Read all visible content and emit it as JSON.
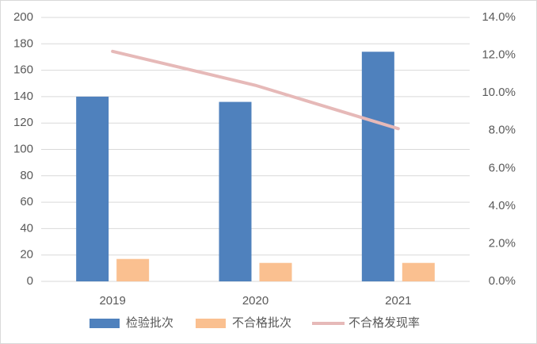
{
  "chart_data": {
    "type": "bar",
    "categories": [
      "2019",
      "2020",
      "2021"
    ],
    "series": [
      {
        "name": "检验批次",
        "type": "bar",
        "color": "#4f81bd",
        "values": [
          140,
          136,
          174
        ]
      },
      {
        "name": "不合格批次",
        "type": "bar",
        "color": "#fac090",
        "values": [
          17,
          14,
          14
        ]
      },
      {
        "name": "不合格发现率",
        "type": "line",
        "axis": "y2",
        "color": "#e6b9b8",
        "values": [
          12.2,
          10.4,
          8.1
        ]
      }
    ],
    "ylim": [
      0,
      200
    ],
    "yticks": [
      0,
      20,
      40,
      60,
      80,
      100,
      120,
      140,
      160,
      180,
      200
    ],
    "y2lim": [
      0,
      14
    ],
    "y2ticks": [
      {
        "value": 0,
        "label": "0.0%"
      },
      {
        "value": 2,
        "label": "2.0%"
      },
      {
        "value": 4,
        "label": "4.0%"
      },
      {
        "value": 6,
        "label": "6.0%"
      },
      {
        "value": 8,
        "label": "8.0%"
      },
      {
        "value": 10,
        "label": "10.0%"
      },
      {
        "value": 12,
        "label": "12.0%"
      },
      {
        "value": 14,
        "label": "14.0%"
      }
    ],
    "grid": true,
    "legend": "bottom"
  }
}
